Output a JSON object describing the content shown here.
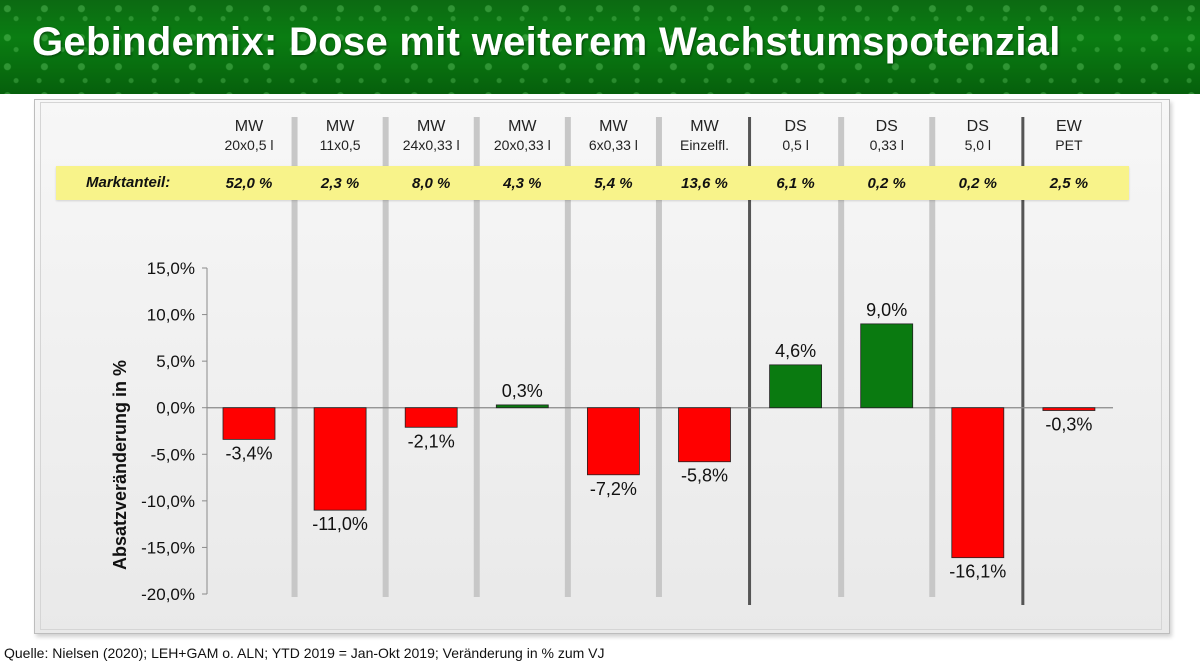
{
  "header": {
    "title": "Gebindemix: Dose mit weiterem Wachstumspotenzial"
  },
  "market_share_label": "Marktanteil:",
  "footer": {
    "source": "Quelle: Nielsen (2020); LEH+GAM o. ALN; YTD 2019 = Jan-Okt 2019; Veränderung in % zum VJ"
  },
  "colors": {
    "positive": "#0a7a10",
    "negative": "#ff0000",
    "banner": "#0a7d12",
    "share_strip": "#f8f38a"
  },
  "chart_data": {
    "type": "bar",
    "ylabel": "Absatzveränderung in %",
    "ylim": [
      -20,
      15
    ],
    "yticks": [
      15,
      10,
      5,
      0,
      -5,
      -10,
      -15,
      -20
    ],
    "ytick_labels": [
      "15,0%",
      "10,0%",
      "5,0%",
      "0,0%",
      "-5,0%",
      "-10,0%",
      "-15,0%",
      "-20,0%"
    ],
    "categories": [
      {
        "line1": "MW",
        "line2": "20x0,5 l",
        "share": "52,0 %"
      },
      {
        "line1": "MW",
        "line2": "11x0,5",
        "share": "2,3 %"
      },
      {
        "line1": "MW",
        "line2": "24x0,33 l",
        "share": "8,0 %"
      },
      {
        "line1": "MW",
        "line2": "20x0,33 l",
        "share": "4,3 %"
      },
      {
        "line1": "MW",
        "line2": "6x0,33 l",
        "share": "5,4 %"
      },
      {
        "line1": "MW",
        "line2": "Einzelfl.",
        "share": "13,6 %"
      },
      {
        "line1": "DS",
        "line2": "0,5 l",
        "share": "6,1 %"
      },
      {
        "line1": "DS",
        "line2": "0,33 l",
        "share": "0,2 %"
      },
      {
        "line1": "DS",
        "line2": "5,0 l",
        "share": "0,2 %"
      },
      {
        "line1": "EW",
        "line2": "PET",
        "share": "2,5 %"
      }
    ],
    "values": [
      -3.4,
      -11.0,
      -2.1,
      0.3,
      -7.2,
      -5.8,
      4.6,
      9.0,
      -16.1,
      -0.3
    ],
    "value_labels": [
      "-3,4%",
      "-11,0%",
      "-2,1%",
      "0,3%",
      "-7,2%",
      "-5,8%",
      "4,6%",
      "9,0%",
      "-16,1%",
      "-0,3%"
    ]
  }
}
